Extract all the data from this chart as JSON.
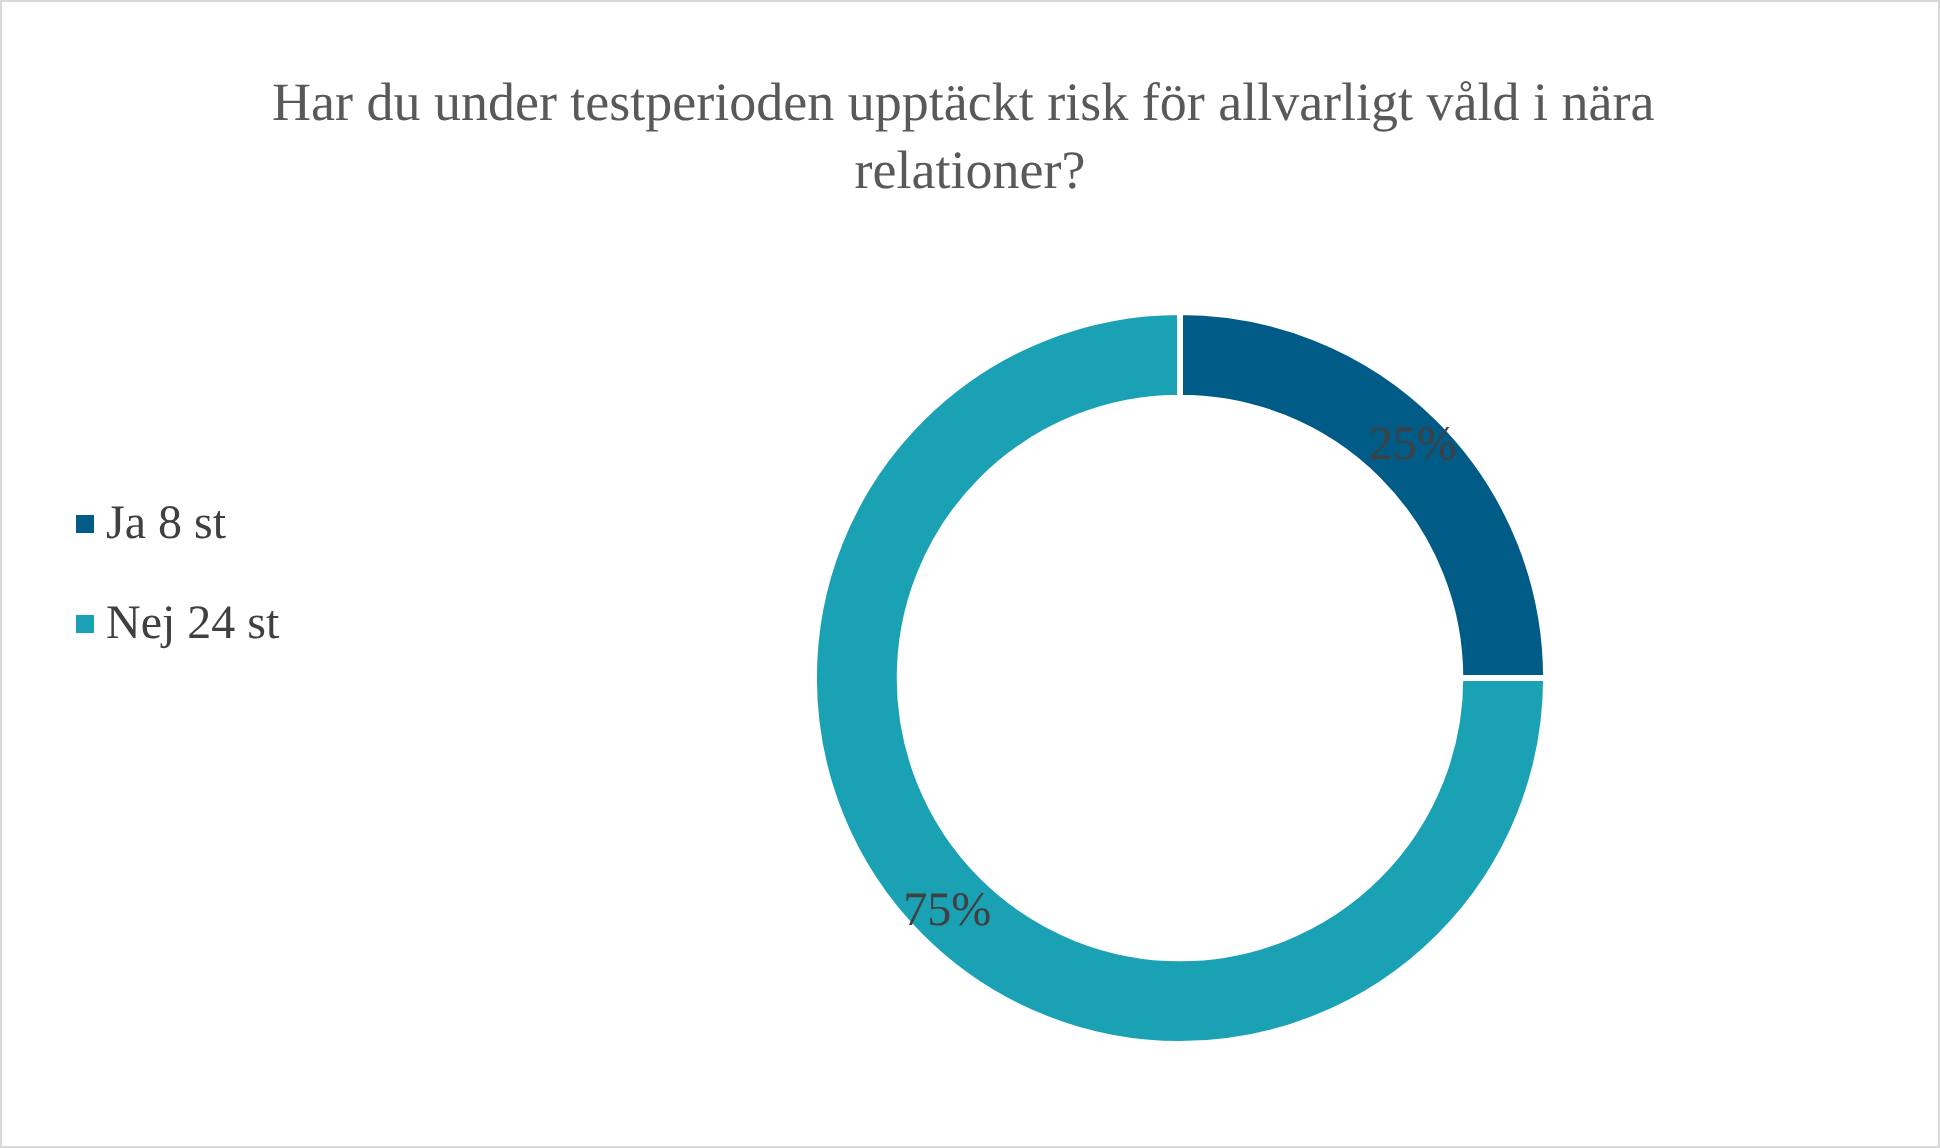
{
  "chart_data": {
    "type": "donut",
    "title": "Har du under testperioden upptäckt risk för allvarligt våld i nära relationer?",
    "categories": [
      "Ja 8 st",
      "Nej 24 st"
    ],
    "values": [
      25,
      75
    ],
    "colors": [
      "#005b87",
      "#1ba1b4"
    ],
    "value_labels": [
      "25%",
      "75%"
    ],
    "legend": "left"
  }
}
